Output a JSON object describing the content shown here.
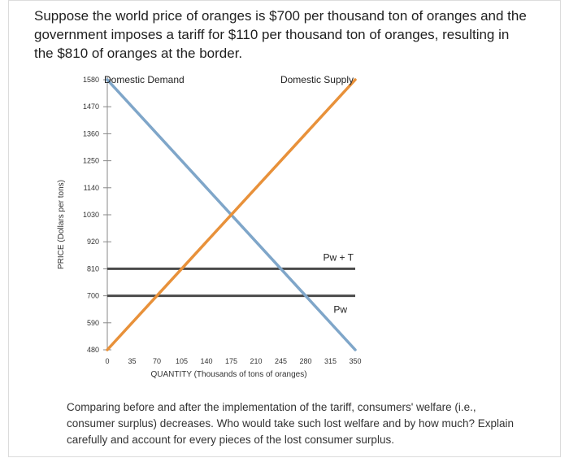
{
  "question": "Suppose the world price of oranges is $700 per thousand ton of oranges and the government imposes a tariff for $110 per thousand ton of oranges, resulting in the $810 of oranges at the border.",
  "footer": "Comparing before and after the implementation of the tariff, consumers' welfare (i.e., consumer surplus) decreases. Who would take such lost welfare and by how much? Explain carefully and account for every pieces of the lost consumer surplus.",
  "colors": {
    "demand": "#7fa6c9",
    "supply": "#e8913a",
    "price_line": "#4a4a4a"
  },
  "chart_data": {
    "type": "line",
    "xlabel": "QUANTITY (Thousands of tons of oranges)",
    "ylabel": "PRICE (Dollars per tons)",
    "xlim": [
      0,
      350
    ],
    "ylim": [
      480,
      1580
    ],
    "x_ticks": [
      0,
      35,
      70,
      105,
      140,
      175,
      210,
      245,
      280,
      315,
      350
    ],
    "y_ticks": [
      480,
      590,
      700,
      810,
      920,
      1030,
      1140,
      1250,
      1360,
      1470,
      1580
    ],
    "series": [
      {
        "name": "Domestic Demand",
        "points": [
          [
            0,
            1580
          ],
          [
            350,
            480
          ]
        ]
      },
      {
        "name": "Domestic Supply",
        "points": [
          [
            0,
            480
          ],
          [
            350,
            1580
          ]
        ]
      }
    ],
    "hlines": [
      {
        "label": "Pw + T",
        "y": 810
      },
      {
        "label": "Pw",
        "y": 700
      }
    ]
  }
}
